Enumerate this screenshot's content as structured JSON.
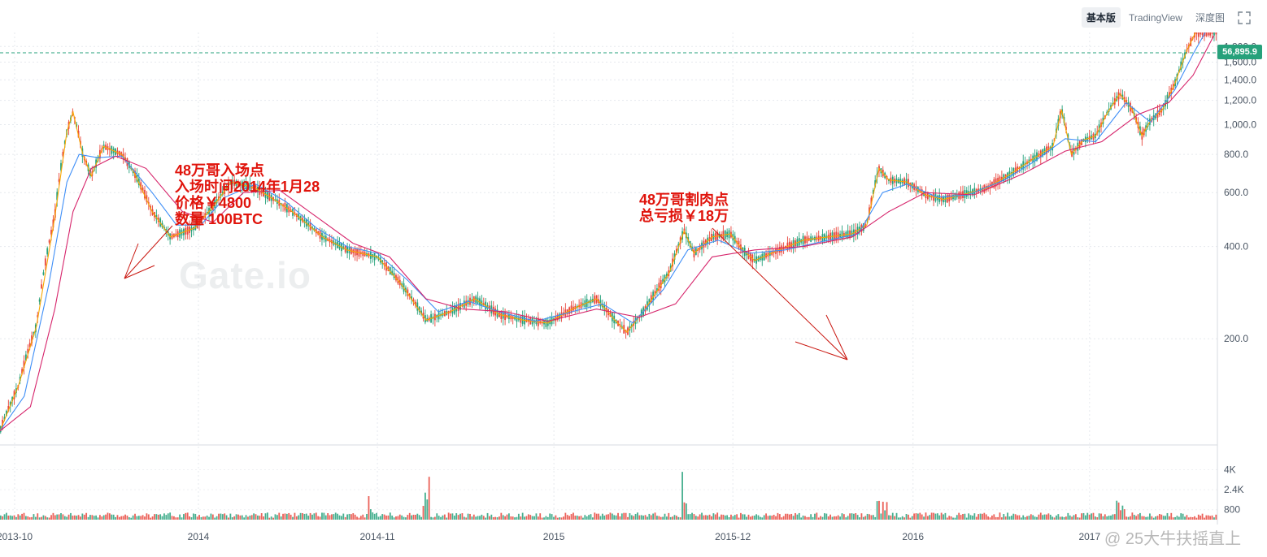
{
  "toolbar": {
    "basic": "基本版",
    "tradingview": "TradingView",
    "depth": "深度图",
    "fullscreen_icon": "fullscreen-icon"
  },
  "current_price": "56,895.9",
  "watermark_logo": "Gate.io",
  "watermark_corner": "@ 25大牛扶摇直上",
  "annotations": {
    "entry": [
      "48万哥入场点",
      "入场时间2014年1月28",
      "价格￥4800",
      "数量 100BTC"
    ],
    "exit": [
      "48万哥割肉点",
      "总亏损￥18万"
    ]
  },
  "colors": {
    "up": "#26a17b",
    "down": "#e8453c",
    "annotation": "#e0140c",
    "ma_fast": "#f7a600",
    "ma_mid": "#3e8ef7",
    "ma_slow": "#d6246b"
  },
  "chart_data": {
    "type": "line",
    "y_ticks": [
      "200.0",
      "400.0",
      "600.0",
      "800.0",
      "1,000.0",
      "1,200.0",
      "1,400.0",
      "1,600.0",
      "1,800.0"
    ],
    "y_tick_values": [
      200,
      400,
      600,
      800,
      1000,
      1200,
      1400,
      1600,
      1800
    ],
    "ylim": [
      90,
      2000
    ],
    "x_ticks": [
      "2013-10",
      "2014",
      "2014-11",
      "2015",
      "2015-12",
      "2016",
      "2017"
    ],
    "volume_ticks": [
      "4K",
      "2.4K",
      "800"
    ],
    "volume_tick_values": [
      4000,
      2400,
      800
    ],
    "volume_ylim": [
      0,
      5200
    ],
    "t_range": [
      0,
      1000
    ],
    "x_tick_t": [
      12,
      163,
      310,
      455,
      602,
      750,
      895
    ],
    "series": [
      {
        "values": [
          [
            0,
            100
          ],
          [
            15,
            140
          ],
          [
            30,
            220
          ],
          [
            45,
            500
          ],
          [
            55,
            950
          ],
          [
            60,
            1100
          ],
          [
            68,
            800
          ],
          [
            75,
            680
          ],
          [
            85,
            850
          ],
          [
            100,
            800
          ],
          [
            110,
            700
          ],
          [
            125,
            520
          ],
          [
            140,
            430
          ],
          [
            160,
            460
          ],
          [
            175,
            540
          ],
          [
            190,
            650
          ],
          [
            210,
            620
          ],
          [
            225,
            570
          ],
          [
            240,
            520
          ],
          [
            265,
            430
          ],
          [
            285,
            390
          ],
          [
            310,
            370
          ],
          [
            330,
            300
          ],
          [
            350,
            230
          ],
          [
            370,
            245
          ],
          [
            390,
            270
          ],
          [
            410,
            240
          ],
          [
            430,
            230
          ],
          [
            450,
            225
          ],
          [
            470,
            250
          ],
          [
            490,
            270
          ],
          [
            505,
            230
          ],
          [
            515,
            210
          ],
          [
            530,
            250
          ],
          [
            550,
            330
          ],
          [
            562,
            450
          ],
          [
            570,
            380
          ],
          [
            585,
            430
          ],
          [
            600,
            440
          ],
          [
            610,
            390
          ],
          [
            620,
            360
          ],
          [
            640,
            390
          ],
          [
            660,
            420
          ],
          [
            680,
            430
          ],
          [
            700,
            440
          ],
          [
            712,
            470
          ],
          [
            722,
            720
          ],
          [
            730,
            660
          ],
          [
            745,
            650
          ],
          [
            760,
            590
          ],
          [
            775,
            570
          ],
          [
            790,
            590
          ],
          [
            810,
            620
          ],
          [
            830,
            690
          ],
          [
            850,
            780
          ],
          [
            865,
            850
          ],
          [
            872,
            1120
          ],
          [
            880,
            800
          ],
          [
            890,
            890
          ],
          [
            900,
            920
          ],
          [
            910,
            1100
          ],
          [
            920,
            1260
          ],
          [
            930,
            1120
          ],
          [
            938,
            920
          ],
          [
            945,
            1030
          ],
          [
            955,
            1120
          ],
          [
            965,
            1360
          ],
          [
            975,
            1750
          ],
          [
            982,
            2000
          ]
        ]
      },
      {
        "values": [
          [
            0,
            100
          ],
          [
            20,
            130
          ],
          [
            40,
            300
          ],
          [
            55,
            650
          ],
          [
            65,
            800
          ],
          [
            80,
            780
          ],
          [
            100,
            790
          ],
          [
            125,
            600
          ],
          [
            145,
            470
          ],
          [
            165,
            470
          ],
          [
            185,
            580
          ],
          [
            210,
            640
          ],
          [
            235,
            560
          ],
          [
            260,
            460
          ],
          [
            285,
            400
          ],
          [
            310,
            380
          ],
          [
            335,
            310
          ],
          [
            360,
            245
          ],
          [
            385,
            265
          ],
          [
            410,
            245
          ],
          [
            440,
            228
          ],
          [
            470,
            245
          ],
          [
            495,
            260
          ],
          [
            520,
            225
          ],
          [
            545,
            290
          ],
          [
            565,
            390
          ],
          [
            590,
            420
          ],
          [
            615,
            380
          ],
          [
            645,
            390
          ],
          [
            675,
            415
          ],
          [
            705,
            440
          ],
          [
            725,
            600
          ],
          [
            745,
            640
          ],
          [
            770,
            580
          ],
          [
            795,
            590
          ],
          [
            825,
            660
          ],
          [
            850,
            760
          ],
          [
            875,
            900
          ],
          [
            900,
            880
          ],
          [
            925,
            1180
          ],
          [
            945,
            1020
          ],
          [
            965,
            1300
          ],
          [
            980,
            1700
          ],
          [
            990,
            2000
          ]
        ]
      },
      {
        "values": [
          [
            0,
            100
          ],
          [
            25,
            120
          ],
          [
            45,
            250
          ],
          [
            60,
            520
          ],
          [
            75,
            720
          ],
          [
            95,
            790
          ],
          [
            120,
            720
          ],
          [
            150,
            520
          ],
          [
            175,
            480
          ],
          [
            200,
            600
          ],
          [
            230,
            610
          ],
          [
            260,
            500
          ],
          [
            290,
            410
          ],
          [
            320,
            370
          ],
          [
            350,
            270
          ],
          [
            380,
            250
          ],
          [
            415,
            245
          ],
          [
            450,
            228
          ],
          [
            490,
            250
          ],
          [
            525,
            235
          ],
          [
            555,
            260
          ],
          [
            585,
            370
          ],
          [
            620,
            390
          ],
          [
            660,
            400
          ],
          [
            700,
            430
          ],
          [
            730,
            520
          ],
          [
            760,
            600
          ],
          [
            800,
            590
          ],
          [
            840,
            690
          ],
          [
            875,
            820
          ],
          [
            905,
            880
          ],
          [
            935,
            1080
          ],
          [
            960,
            1180
          ],
          [
            980,
            1450
          ],
          [
            997,
            1950
          ]
        ]
      }
    ]
  }
}
